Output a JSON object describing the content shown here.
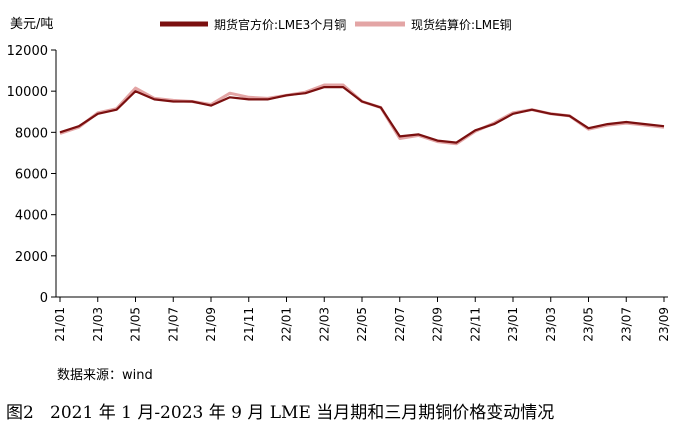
{
  "chart_data": {
    "type": "line",
    "ylabel": "美元/吨",
    "ylim": [
      0,
      12000
    ],
    "yticks": [
      0,
      2000,
      4000,
      6000,
      8000,
      10000,
      12000
    ],
    "x_tick_labels": [
      "21/01",
      "21/03",
      "21/05",
      "21/07",
      "21/09",
      "21/11",
      "22/01",
      "22/03",
      "22/05",
      "22/07",
      "22/09",
      "22/11",
      "23/01",
      "23/03",
      "23/05",
      "23/07",
      "23/09"
    ],
    "x": [
      "2021-01",
      "2021-02",
      "2021-03",
      "2021-04",
      "2021-05",
      "2021-06",
      "2021-07",
      "2021-08",
      "2021-09",
      "2021-10",
      "2021-11",
      "2021-12",
      "2022-01",
      "2022-02",
      "2022-03",
      "2022-04",
      "2022-05",
      "2022-06",
      "2022-07",
      "2022-08",
      "2022-09",
      "2022-10",
      "2022-11",
      "2022-12",
      "2023-01",
      "2023-02",
      "2023-03",
      "2023-04",
      "2023-05",
      "2023-06",
      "2023-07",
      "2023-08",
      "2023-09"
    ],
    "series": [
      {
        "name": "期货官方价:LME3个月铜",
        "color": "#7b1010",
        "values": [
          8000,
          8300,
          8900,
          9100,
          10000,
          9600,
          9500,
          9500,
          9300,
          9700,
          9600,
          9600,
          9800,
          9900,
          10200,
          10200,
          9500,
          9200,
          7800,
          7900,
          7600,
          7500,
          8100,
          8400,
          8900,
          9100,
          8900,
          8800,
          8200,
          8400,
          8500,
          8400,
          8300
        ]
      },
      {
        "name": "现货结算价:LME铜",
        "color": "#e3a5a5",
        "values": [
          7950,
          8250,
          8950,
          9150,
          10150,
          9650,
          9550,
          9500,
          9350,
          9900,
          9700,
          9650,
          9800,
          9950,
          10300,
          10300,
          9500,
          9200,
          7700,
          7850,
          7550,
          7450,
          8050,
          8450,
          8950,
          9100,
          8900,
          8800,
          8150,
          8350,
          8450,
          8350,
          8250
        ]
      }
    ],
    "grid": false,
    "legend": "top"
  },
  "source": "数据来源：wind",
  "caption": "图2   2021 年 1 月-2023 年 9 月 LME 当月期和三月期铜价格变动情况"
}
